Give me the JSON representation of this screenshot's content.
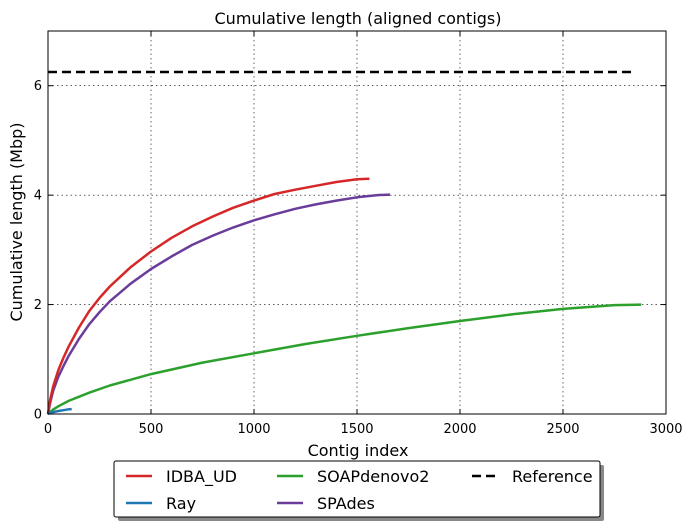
{
  "chart_data": {
    "type": "line",
    "title": "Cumulative length (aligned contigs)",
    "xlabel": "Contig index",
    "ylabel": "Cumulative length (Mbp)",
    "xlim": [
      0,
      3000
    ],
    "ylim": [
      0,
      7
    ],
    "xticks": [
      0,
      500,
      1000,
      1500,
      2000,
      2500,
      3000
    ],
    "yticks": [
      0,
      2,
      4,
      6
    ],
    "grid": true,
    "legend_position": "bottom-center-outside",
    "series": [
      {
        "name": "IDBA_UD",
        "color": "#d62728",
        "style": "solid",
        "x": [
          0,
          10,
          25,
          50,
          75,
          100,
          150,
          200,
          250,
          300,
          400,
          500,
          600,
          700,
          800,
          900,
          1000,
          1100,
          1200,
          1300,
          1400,
          1500,
          1560
        ],
        "y": [
          0,
          0.25,
          0.5,
          0.8,
          1.03,
          1.23,
          1.58,
          1.88,
          2.12,
          2.33,
          2.68,
          2.97,
          3.22,
          3.43,
          3.61,
          3.77,
          3.9,
          4.02,
          4.1,
          4.17,
          4.24,
          4.29,
          4.3
        ]
      },
      {
        "name": "Ray",
        "color": "#1f77b4",
        "style": "solid",
        "x": [
          0,
          10,
          25,
          50,
          75,
          100,
          115
        ],
        "y": [
          0,
          0.02,
          0.035,
          0.055,
          0.07,
          0.085,
          0.09
        ]
      },
      {
        "name": "SOAPdenovo2",
        "color": "#2ca02c",
        "style": "solid",
        "x": [
          0,
          25,
          50,
          100,
          200,
          300,
          500,
          750,
          1000,
          1250,
          1500,
          1750,
          2000,
          2250,
          2500,
          2750,
          2880
        ],
        "y": [
          0,
          0.08,
          0.14,
          0.24,
          0.39,
          0.52,
          0.73,
          0.94,
          1.11,
          1.28,
          1.43,
          1.57,
          1.7,
          1.82,
          1.92,
          1.99,
          2.0
        ]
      },
      {
        "name": "SPAdes",
        "color": "#6a3d9a",
        "style": "solid",
        "x": [
          0,
          10,
          25,
          50,
          75,
          100,
          150,
          200,
          250,
          300,
          400,
          500,
          600,
          700,
          800,
          900,
          1000,
          1100,
          1200,
          1300,
          1400,
          1500,
          1600,
          1660
        ],
        "y": [
          0,
          0.2,
          0.42,
          0.68,
          0.88,
          1.06,
          1.37,
          1.64,
          1.86,
          2.06,
          2.38,
          2.65,
          2.88,
          3.09,
          3.26,
          3.41,
          3.54,
          3.65,
          3.75,
          3.83,
          3.9,
          3.96,
          4.0,
          4.01
        ]
      },
      {
        "name": "Reference",
        "color": "#000000",
        "style": "dashed",
        "x": [
          0,
          2850
        ],
        "y": [
          6.25,
          6.25
        ]
      }
    ],
    "legend_order": [
      "IDBA_UD",
      "Ray",
      "SOAPdenovo2",
      "SPAdes",
      "Reference"
    ]
  }
}
